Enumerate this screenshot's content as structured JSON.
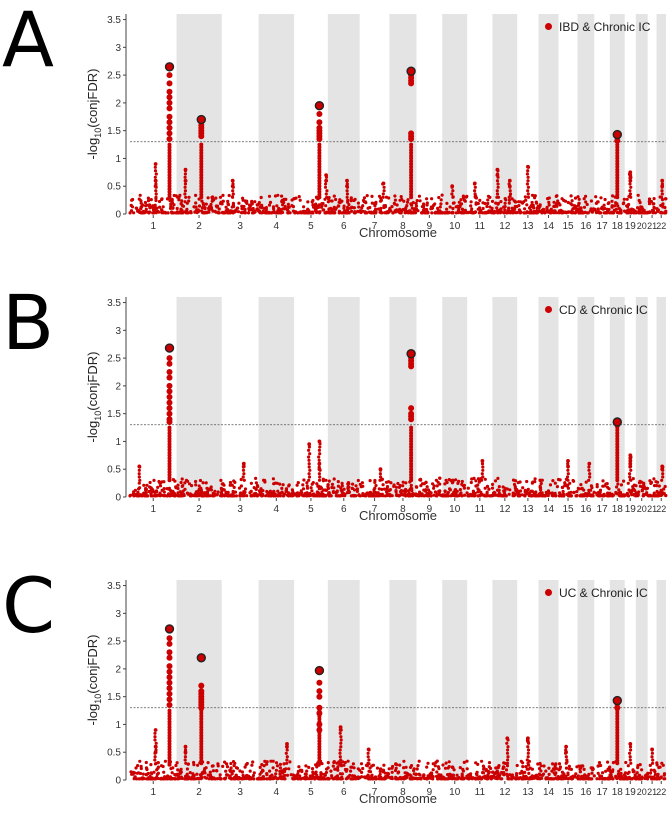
{
  "chart_data": [
    {
      "panel_letter": "A",
      "type": "scatter",
      "subtype": "manhattan",
      "legend": "IBD & Chronic IC",
      "xlabel": "Chromosome",
      "ylabel_base": "-log",
      "ylabel_sub": "10",
      "ylabel_rest": "(conjFDR)",
      "ylim": [
        0,
        3.6
      ],
      "yticks": [
        0,
        0.5,
        1,
        1.5,
        2,
        2.5,
        3,
        3.5
      ],
      "threshold": 1.3,
      "chromosomes": [
        "1",
        "2",
        "3",
        "4",
        "5",
        "6",
        "7",
        "8",
        "9",
        "10",
        "11",
        "12",
        "13",
        "14",
        "15",
        "16",
        "17",
        "18",
        "19",
        "20",
        "21",
        "22"
      ],
      "peaks": [
        {
          "chr": 1,
          "pos": 0.85,
          "top": 2.65,
          "hits": [
            2.5,
            2.35,
            2.2,
            2.1,
            2.0,
            1.9,
            1.75,
            1.65,
            1.55,
            1.45,
            1.35
          ]
        },
        {
          "chr": 2,
          "pos": 0.55,
          "top": 1.7,
          "hits": [
            1.6,
            1.55,
            1.5,
            1.45,
            1.4
          ]
        },
        {
          "chr": 5,
          "pos": 0.75,
          "top": 1.95,
          "hits": [
            1.8,
            1.65,
            1.55,
            1.5,
            1.45,
            1.4,
            1.35
          ]
        },
        {
          "chr": 8,
          "pos": 0.8,
          "top": 2.57,
          "hits": [
            2.5,
            2.45,
            2.4,
            2.35,
            1.45,
            1.4,
            1.35
          ]
        },
        {
          "chr": 18,
          "pos": 0.5,
          "top": 1.43,
          "hits": [
            1.38,
            1.32
          ]
        }
      ],
      "minor": [
        {
          "chr": 1,
          "pos": 0.55,
          "values": [
            0.9,
            0.6,
            0.5
          ]
        },
        {
          "chr": 2,
          "pos": 0.2,
          "values": [
            0.8,
            0.6
          ]
        },
        {
          "chr": 3,
          "pos": 0.3,
          "values": [
            0.6,
            0.5
          ]
        },
        {
          "chr": 5,
          "pos": 0.95,
          "values": [
            0.7,
            0.6
          ]
        },
        {
          "chr": 6,
          "pos": 0.6,
          "values": [
            0.6,
            0.5
          ]
        },
        {
          "chr": 7,
          "pos": 0.8,
          "values": [
            0.55
          ]
        },
        {
          "chr": 10,
          "pos": 0.4,
          "values": [
            0.5
          ]
        },
        {
          "chr": 11,
          "pos": 0.3,
          "values": [
            0.55
          ]
        },
        {
          "chr": 12,
          "pos": 0.2,
          "values": [
            0.8,
            0.7
          ]
        },
        {
          "chr": 12,
          "pos": 0.7,
          "values": [
            0.6,
            0.5
          ]
        },
        {
          "chr": 13,
          "pos": 0.5,
          "values": [
            0.85
          ]
        },
        {
          "chr": 19,
          "pos": 0.5,
          "values": [
            0.75,
            0.7,
            0.65,
            0.6
          ]
        },
        {
          "chr": 22,
          "pos": 0.6,
          "values": [
            0.6,
            0.5
          ]
        }
      ]
    },
    {
      "panel_letter": "B",
      "type": "scatter",
      "subtype": "manhattan",
      "legend": "CD & Chronic IC",
      "xlabel": "Chromosome",
      "ylabel_base": "-log",
      "ylabel_sub": "10",
      "ylabel_rest": "(conjFDR)",
      "ylim": [
        0,
        3.6
      ],
      "yticks": [
        0,
        0.5,
        1,
        1.5,
        2,
        2.5,
        3,
        3.5
      ],
      "threshold": 1.3,
      "chromosomes": [
        "1",
        "2",
        "3",
        "4",
        "5",
        "6",
        "7",
        "8",
        "9",
        "10",
        "11",
        "12",
        "13",
        "14",
        "15",
        "16",
        "17",
        "18",
        "19",
        "20",
        "21",
        "22"
      ],
      "peaks": [
        {
          "chr": 1,
          "pos": 0.85,
          "top": 2.68,
          "hits": [
            2.5,
            2.4,
            2.25,
            2.15,
            2.0,
            1.9,
            1.8,
            1.7,
            1.6,
            1.5,
            1.4,
            1.35
          ]
        },
        {
          "chr": 8,
          "pos": 0.8,
          "top": 2.58,
          "hits": [
            2.5,
            2.45,
            2.4,
            2.35,
            1.6,
            1.5,
            1.45,
            1.4
          ]
        },
        {
          "chr": 18,
          "pos": 0.5,
          "top": 1.35,
          "hits": [
            1.3
          ]
        }
      ],
      "minor": [
        {
          "chr": 1,
          "pos": 0.2,
          "values": [
            0.55
          ]
        },
        {
          "chr": 3,
          "pos": 0.6,
          "values": [
            0.6,
            0.55
          ]
        },
        {
          "chr": 5,
          "pos": 0.45,
          "values": [
            0.95
          ]
        },
        {
          "chr": 5,
          "pos": 0.75,
          "values": [
            1.0,
            0.6,
            0.5
          ]
        },
        {
          "chr": 7,
          "pos": 0.7,
          "values": [
            0.5
          ]
        },
        {
          "chr": 11,
          "pos": 0.6,
          "values": [
            0.65
          ]
        },
        {
          "chr": 15,
          "pos": 0.5,
          "values": [
            0.65,
            0.55
          ]
        },
        {
          "chr": 16,
          "pos": 0.7,
          "values": [
            0.6
          ]
        },
        {
          "chr": 19,
          "pos": 0.5,
          "values": [
            0.75,
            0.7,
            0.65,
            0.6,
            0.55
          ]
        },
        {
          "chr": 22,
          "pos": 0.6,
          "values": [
            0.55,
            0.5
          ]
        }
      ]
    },
    {
      "panel_letter": "C",
      "type": "scatter",
      "subtype": "manhattan",
      "legend": "UC & Chronic IC",
      "xlabel": "Chromosome",
      "ylabel_base": "-log",
      "ylabel_sub": "10",
      "ylabel_rest": "(conjFDR)",
      "ylim": [
        0,
        3.6
      ],
      "yticks": [
        0,
        0.5,
        1,
        1.5,
        2,
        2.5,
        3,
        3.5
      ],
      "threshold": 1.3,
      "chromosomes": [
        "1",
        "2",
        "3",
        "4",
        "5",
        "6",
        "7",
        "8",
        "9",
        "10",
        "11",
        "12",
        "13",
        "14",
        "15",
        "16",
        "17",
        "18",
        "19",
        "20",
        "21",
        "22"
      ],
      "peaks": [
        {
          "chr": 1,
          "pos": 0.85,
          "top": 2.72,
          "hits": [
            2.55,
            2.45,
            2.3,
            2.2,
            2.05,
            1.95,
            1.85,
            1.75,
            1.65,
            1.55,
            1.45,
            1.35
          ]
        },
        {
          "chr": 2,
          "pos": 0.55,
          "top": 2.2,
          "hits": [
            1.7,
            1.6,
            1.55,
            1.5,
            1.45,
            1.4,
            1.35,
            1.3
          ]
        },
        {
          "chr": 5,
          "pos": 0.75,
          "top": 1.97,
          "hits": [
            1.75,
            1.6,
            1.5,
            1.3,
            1.2,
            1.0,
            0.9
          ]
        },
        {
          "chr": 18,
          "pos": 0.5,
          "top": 1.43,
          "hits": [
            1.38,
            1.3
          ]
        }
      ],
      "minor": [
        {
          "chr": 1,
          "pos": 0.55,
          "values": [
            0.9,
            0.6,
            0.5
          ]
        },
        {
          "chr": 2,
          "pos": 0.2,
          "values": [
            0.6,
            0.5
          ]
        },
        {
          "chr": 4,
          "pos": 0.8,
          "values": [
            0.65,
            0.6
          ]
        },
        {
          "chr": 6,
          "pos": 0.4,
          "values": [
            0.95,
            0.9
          ]
        },
        {
          "chr": 7,
          "pos": 0.3,
          "values": [
            0.55
          ]
        },
        {
          "chr": 12,
          "pos": 0.6,
          "values": [
            0.75
          ]
        },
        {
          "chr": 13,
          "pos": 0.5,
          "values": [
            0.75,
            0.7
          ]
        },
        {
          "chr": 15,
          "pos": 0.4,
          "values": [
            0.6,
            0.5
          ]
        },
        {
          "chr": 19,
          "pos": 0.5,
          "values": [
            0.65
          ]
        },
        {
          "chr": 21,
          "pos": 0.5,
          "values": [
            0.55
          ]
        }
      ]
    }
  ],
  "colors": {
    "points": "#cc0000",
    "shade": "#e4e4e4",
    "threshold": "#555555",
    "lead_outline": "#222222"
  }
}
